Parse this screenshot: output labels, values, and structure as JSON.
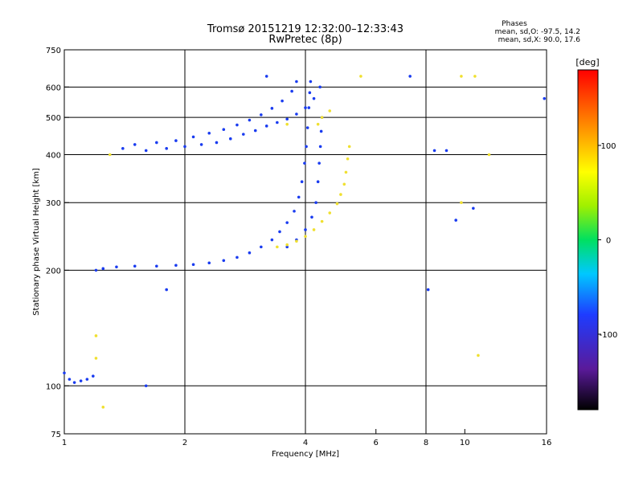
{
  "header": {
    "title": "Tromsø 20151219 12:32:00–12:33:43",
    "subtitle": "RwPretec (8p)",
    "stats_title": "Phases",
    "stats_line1": "mean, sd,O: -97.5, 14.2",
    "stats_line2": "mean, sd,X:  90.0, 17.6"
  },
  "chart_data": {
    "type": "scatter",
    "title": "Tromsø 20151219 12:32:00–12:33:43",
    "subtitle": "RwPretec (8p)",
    "xlabel": "Frequency [MHz]",
    "ylabel": "Stationary phase Virtual Height [km]",
    "x_scale": "log",
    "y_scale": "log",
    "xlim": [
      1,
      16
    ],
    "ylim": [
      75,
      750
    ],
    "x_ticks": [
      1,
      2,
      4,
      6,
      8,
      10,
      16
    ],
    "y_ticks": [
      75,
      100,
      200,
      300,
      400,
      500,
      600,
      750
    ],
    "x_grid": [
      2,
      4,
      8
    ],
    "y_grid": [
      100,
      200,
      300,
      400,
      500,
      600
    ],
    "colorbar": {
      "label": "[deg]",
      "range": [
        -180,
        180
      ],
      "ticks": [
        100,
        0,
        -100
      ]
    },
    "series": [
      {
        "name": "O",
        "color": "#1a3cf0",
        "points": [
          [
            1.0,
            108
          ],
          [
            1.03,
            104
          ],
          [
            1.06,
            102
          ],
          [
            1.1,
            103
          ],
          [
            1.14,
            104
          ],
          [
            1.18,
            106
          ],
          [
            1.2,
            200
          ],
          [
            1.25,
            202
          ],
          [
            1.35,
            204
          ],
          [
            1.5,
            205
          ],
          [
            1.7,
            205
          ],
          [
            1.9,
            206
          ],
          [
            2.1,
            207
          ],
          [
            2.3,
            209
          ],
          [
            2.5,
            212
          ],
          [
            2.7,
            216
          ],
          [
            2.9,
            222
          ],
          [
            3.1,
            230
          ],
          [
            3.3,
            240
          ],
          [
            3.45,
            252
          ],
          [
            3.6,
            266
          ],
          [
            3.75,
            285
          ],
          [
            3.85,
            310
          ],
          [
            3.92,
            340
          ],
          [
            3.98,
            380
          ],
          [
            4.02,
            420
          ],
          [
            4.05,
            470
          ],
          [
            4.08,
            530
          ],
          [
            4.1,
            580
          ],
          [
            4.12,
            620
          ],
          [
            3.6,
            230
          ],
          [
            3.8,
            240
          ],
          [
            4.0,
            255
          ],
          [
            4.15,
            275
          ],
          [
            4.25,
            300
          ],
          [
            4.3,
            340
          ],
          [
            4.33,
            380
          ],
          [
            4.36,
            420
          ],
          [
            4.38,
            460
          ],
          [
            4.4,
            500
          ],
          [
            1.4,
            415
          ],
          [
            1.6,
            410
          ],
          [
            1.8,
            415
          ],
          [
            2.0,
            420
          ],
          [
            2.2,
            425
          ],
          [
            2.4,
            430
          ],
          [
            2.6,
            440
          ],
          [
            2.8,
            452
          ],
          [
            3.0,
            462
          ],
          [
            3.2,
            475
          ],
          [
            3.4,
            485
          ],
          [
            3.6,
            495
          ],
          [
            3.8,
            510
          ],
          [
            4.0,
            530
          ],
          [
            4.2,
            560
          ],
          [
            4.35,
            600
          ],
          [
            1.5,
            425
          ],
          [
            1.7,
            430
          ],
          [
            1.9,
            435
          ],
          [
            2.1,
            445
          ],
          [
            2.3,
            455
          ],
          [
            2.5,
            465
          ],
          [
            2.7,
            478
          ],
          [
            2.9,
            492
          ],
          [
            3.1,
            508
          ],
          [
            3.3,
            528
          ],
          [
            3.5,
            552
          ],
          [
            3.7,
            585
          ],
          [
            3.8,
            620
          ],
          [
            3.2,
            640
          ],
          [
            7.3,
            640
          ],
          [
            8.4,
            410
          ],
          [
            9.0,
            410
          ],
          [
            9.5,
            270
          ],
          [
            10.5,
            290
          ],
          [
            15.8,
            560
          ],
          [
            8.1,
            178
          ],
          [
            1.8,
            178
          ],
          [
            1.6,
            100
          ]
        ]
      },
      {
        "name": "X",
        "color": "#f0e030",
        "points": [
          [
            3.4,
            230
          ],
          [
            3.6,
            233
          ],
          [
            3.8,
            238
          ],
          [
            4.0,
            245
          ],
          [
            4.2,
            255
          ],
          [
            4.4,
            268
          ],
          [
            4.6,
            282
          ],
          [
            4.8,
            298
          ],
          [
            4.9,
            315
          ],
          [
            5.0,
            335
          ],
          [
            5.05,
            360
          ],
          [
            5.1,
            390
          ],
          [
            5.15,
            420
          ],
          [
            4.3,
            480
          ],
          [
            4.4,
            500
          ],
          [
            4.6,
            520
          ],
          [
            3.6,
            480
          ],
          [
            1.3,
            400
          ],
          [
            9.8,
            300
          ],
          [
            10.8,
            120
          ],
          [
            10.6,
            640
          ],
          [
            9.8,
            640
          ],
          [
            1.2,
            135
          ],
          [
            1.2,
            118
          ],
          [
            1.25,
            88
          ],
          [
            5.5,
            640
          ],
          [
            11.5,
            400
          ]
        ]
      }
    ]
  }
}
